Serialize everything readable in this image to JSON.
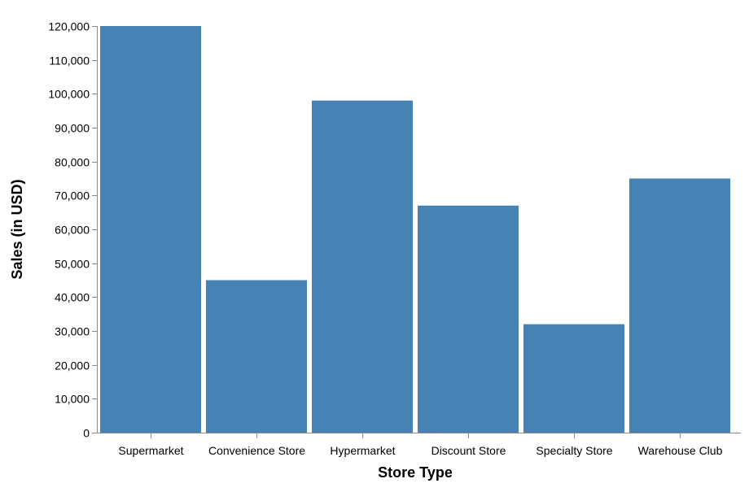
{
  "chart_data": {
    "type": "bar",
    "categories": [
      "Supermarket",
      "Convenience Store",
      "Hypermarket",
      "Discount Store",
      "Specialty Store",
      "Warehouse Club"
    ],
    "values": [
      120000,
      45000,
      98000,
      67000,
      32000,
      75000
    ],
    "xlabel": "Store Type",
    "ylabel": "Sales (in USD)",
    "ylim": [
      0,
      120000
    ],
    "yticks": [
      0,
      10000,
      20000,
      30000,
      40000,
      50000,
      60000,
      70000,
      80000,
      90000,
      100000,
      110000,
      120000
    ],
    "ytick_labels": [
      "0",
      "10,000",
      "20,000",
      "30,000",
      "40,000",
      "50,000",
      "60,000",
      "70,000",
      "80,000",
      "90,000",
      "100,000",
      "110,000",
      "120,000"
    ],
    "bar_color": "#4682b4",
    "axis_color": "#888888",
    "grid": false,
    "legend": "none"
  }
}
